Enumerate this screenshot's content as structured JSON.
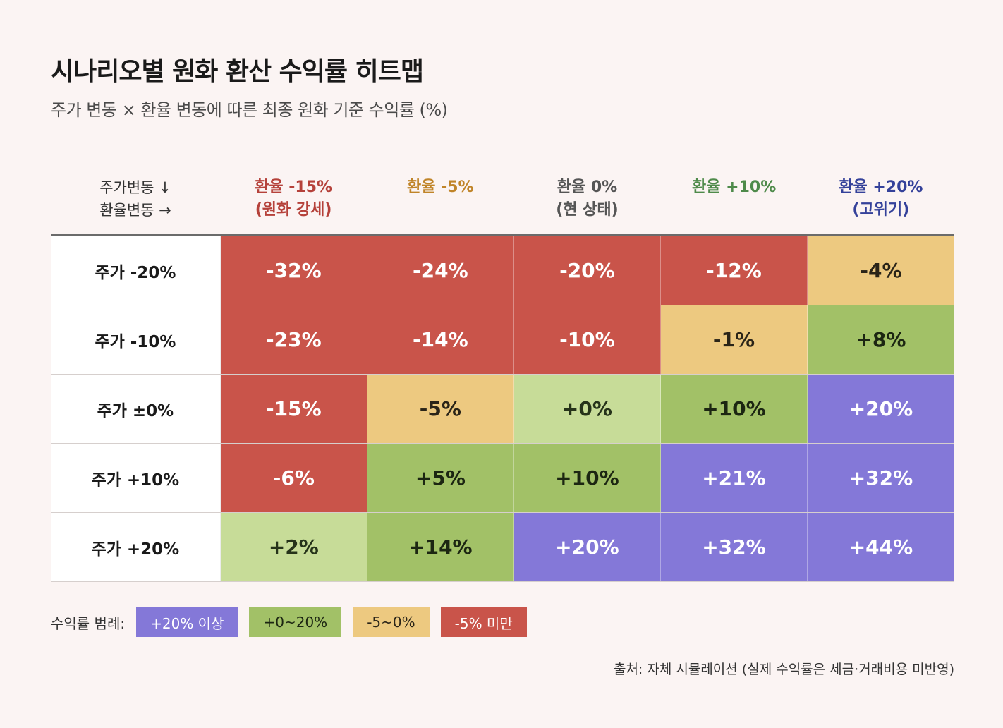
{
  "title": "시나리오별 원화 환산 수익률 히트맵",
  "subtitle": "주가 변동 × 환율 변동에 따른 최종 원화 기준 수익률 (%)",
  "corner": {
    "line1": "주가변동 ↓",
    "line2": "환율변동 →"
  },
  "columns": [
    {
      "line1": "환율 -15%",
      "line2": "(원화 강세)",
      "color": "#b5413a"
    },
    {
      "line1": "환율 -5%",
      "line2": "",
      "color": "#c08428"
    },
    {
      "line1": "환율 0%",
      "line2": "(현 상태)",
      "color": "#555555"
    },
    {
      "line1": "환율 +10%",
      "line2": "",
      "color": "#4e8a4a"
    },
    {
      "line1": "환율 +20%",
      "line2": "(고위기)",
      "color": "#34419a"
    }
  ],
  "chart_data": {
    "type": "heatmap",
    "title": "시나리오별 원화 환산 수익률 히트맵",
    "subtitle": "주가 변동 × 환율 변동에 따른 최종 원화 기준 수익률 (%)",
    "x_categories": [
      "환율 -15%",
      "환율 -5%",
      "환율 0%",
      "환율 +10%",
      "환율 +20%"
    ],
    "y_categories": [
      "주가 -20%",
      "주가 -10%",
      "주가 ±0%",
      "주가 +10%",
      "주가 +20%"
    ],
    "values": [
      [
        -32,
        -24,
        -20,
        -12,
        -4
      ],
      [
        -23,
        -14,
        -10,
        -1,
        8
      ],
      [
        -15,
        -5,
        0,
        10,
        20
      ],
      [
        -6,
        5,
        10,
        21,
        32
      ],
      [
        2,
        14,
        20,
        32,
        44
      ]
    ],
    "labels": [
      [
        "-32%",
        "-24%",
        "-20%",
        "-12%",
        "-4%"
      ],
      [
        "-23%",
        "-14%",
        "-10%",
        "-1%",
        "+8%"
      ],
      [
        "-15%",
        "-5%",
        "+0%",
        "+10%",
        "+20%"
      ],
      [
        "-6%",
        "+5%",
        "+10%",
        "+21%",
        "+32%"
      ],
      [
        "+2%",
        "+14%",
        "+20%",
        "+32%",
        "+44%"
      ]
    ]
  },
  "cell_style": [
    [
      "red",
      "red",
      "red",
      "red",
      "yellow"
    ],
    [
      "red",
      "red",
      "red",
      "yellow",
      "green"
    ],
    [
      "red",
      "yellow",
      "lightgreen",
      "green",
      "purple"
    ],
    [
      "red",
      "green",
      "green",
      "purple",
      "purple"
    ],
    [
      "lightgreen",
      "green",
      "purple",
      "purple",
      "purple"
    ]
  ],
  "colors": {
    "red": {
      "bg": "#c9544a",
      "fg": "#ffffff"
    },
    "yellow": {
      "bg": "#edc980",
      "fg": "#2a2418"
    },
    "green": {
      "bg": "#a2c167",
      "fg": "#1c2612"
    },
    "lightgreen": {
      "bg": "#c7dc98",
      "fg": "#26331a"
    },
    "purple": {
      "bg": "#8478d8",
      "fg": "#ffffff"
    }
  },
  "legend": {
    "label": "수익률 범례:",
    "items": [
      {
        "text": "+20% 이상",
        "style": "purple"
      },
      {
        "text": "+0~20%",
        "style": "green"
      },
      {
        "text": "-5~0%",
        "style": "yellow"
      },
      {
        "text": "-5% 미만",
        "style": "red"
      }
    ]
  },
  "source": "출처: 자체 시뮬레이션 (실제 수익률은 세금·거래비용 미반영)"
}
